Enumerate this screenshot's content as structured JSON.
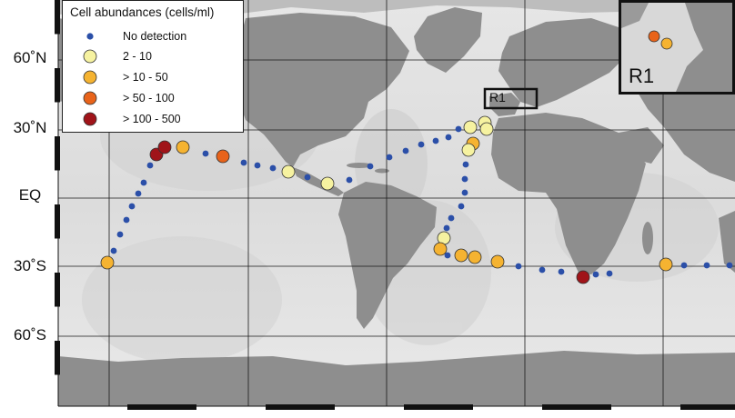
{
  "legend": {
    "title": "Cell abundances (cells/ml)",
    "items": [
      {
        "label": "No detection",
        "color": "#2b4fa8",
        "kind": "dot"
      },
      {
        "label": "2 - 10",
        "color": "#f6f2a0",
        "kind": "circle"
      },
      {
        "label": "> 10 - 50",
        "color": "#f5b331",
        "kind": "circle"
      },
      {
        "label": "> 50 - 100",
        "color": "#e8631a",
        "kind": "circle"
      },
      {
        "label": "> 100 - 500",
        "color": "#a01419",
        "kind": "circle"
      }
    ]
  },
  "lat_labels": [
    "60˚N",
    "30˚N",
    "EQ",
    "30˚S",
    "60˚S"
  ],
  "region_label": "R1",
  "inset_label": "R1",
  "colors": {
    "ocean_light": "#ececec",
    "ocean_mid": "#d4d4d4",
    "land": "#8e8e8e",
    "grid": "#1a1a1a"
  }
}
